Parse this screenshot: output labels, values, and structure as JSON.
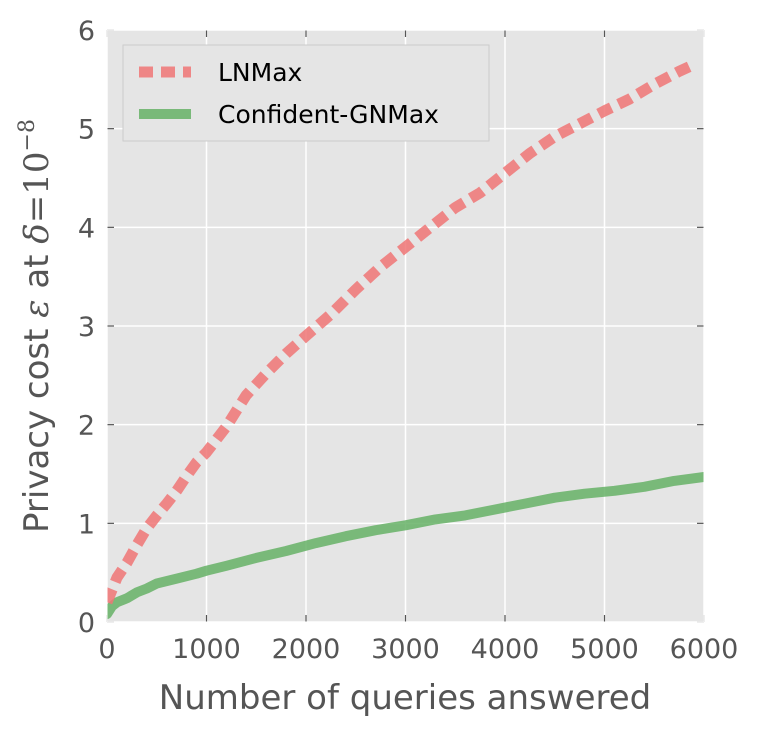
{
  "chart_data": {
    "type": "line",
    "title": "",
    "xlabel": "Number of queries answered",
    "ylabel": {
      "prefix": "Privacy cost ",
      "epsilon": "ε",
      "middle": " at ",
      "delta": "δ",
      "equals": "=10",
      "exponent": "−8"
    },
    "xlim": [
      0,
      6000
    ],
    "ylim": [
      0,
      6
    ],
    "xticks": [
      0,
      1000,
      2000,
      3000,
      4000,
      5000,
      6000
    ],
    "yticks": [
      0,
      1,
      2,
      3,
      4,
      5,
      6
    ],
    "grid": true,
    "legend_position": "top-left",
    "series": [
      {
        "name": "LNMax",
        "style": "dashed",
        "color": "#f07676",
        "x": [
          0,
          100,
          200,
          300,
          400,
          500,
          600,
          700,
          800,
          900,
          1000,
          1200,
          1400,
          1600,
          1800,
          2000,
          2250,
          2500,
          2750,
          3000,
          3250,
          3500,
          3750,
          4000,
          4250,
          4500,
          4750,
          5000,
          5250,
          5500,
          5750,
          5900
        ],
        "y": [
          0.2,
          0.45,
          0.6,
          0.78,
          0.95,
          1.08,
          1.2,
          1.33,
          1.48,
          1.62,
          1.72,
          1.98,
          2.3,
          2.52,
          2.72,
          2.9,
          3.12,
          3.37,
          3.6,
          3.8,
          4.0,
          4.2,
          4.35,
          4.55,
          4.75,
          4.92,
          5.05,
          5.18,
          5.3,
          5.45,
          5.58,
          5.65
        ]
      },
      {
        "name": "Confident-GNMax",
        "style": "solid",
        "color": "#66b266",
        "x": [
          0,
          50,
          100,
          200,
          300,
          400,
          500,
          700,
          900,
          1000,
          1200,
          1500,
          1800,
          2100,
          2400,
          2700,
          3000,
          3300,
          3600,
          3900,
          4200,
          4500,
          4800,
          5100,
          5400,
          5700,
          6000
        ],
        "y": [
          0.08,
          0.16,
          0.2,
          0.24,
          0.3,
          0.34,
          0.39,
          0.44,
          0.49,
          0.52,
          0.57,
          0.65,
          0.72,
          0.8,
          0.87,
          0.93,
          0.98,
          1.04,
          1.08,
          1.14,
          1.2,
          1.26,
          1.3,
          1.33,
          1.37,
          1.43,
          1.47
        ]
      }
    ]
  }
}
